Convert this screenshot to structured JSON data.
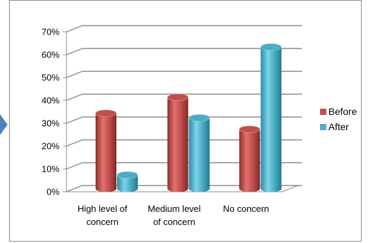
{
  "chart_data": {
    "type": "bar",
    "style": "3d-cylinder",
    "categories": [
      [
        "High level of",
        "concern"
      ],
      [
        "Medium level",
        "of concern"
      ],
      [
        "No concern"
      ]
    ],
    "series": [
      {
        "name": "Before",
        "color": "#c0504d",
        "values": [
          33,
          40,
          26
        ]
      },
      {
        "name": "After",
        "color": "#4bacc6",
        "values": [
          6,
          31,
          62
        ]
      }
    ],
    "yticks": [
      "0%",
      "10%",
      "20%",
      "30%",
      "40%",
      "50%",
      "60%",
      "70%"
    ],
    "ylim": [
      0,
      70
    ],
    "grid": true,
    "legend_position": "right"
  },
  "decor": {
    "accent_color": "#4f81bd"
  }
}
